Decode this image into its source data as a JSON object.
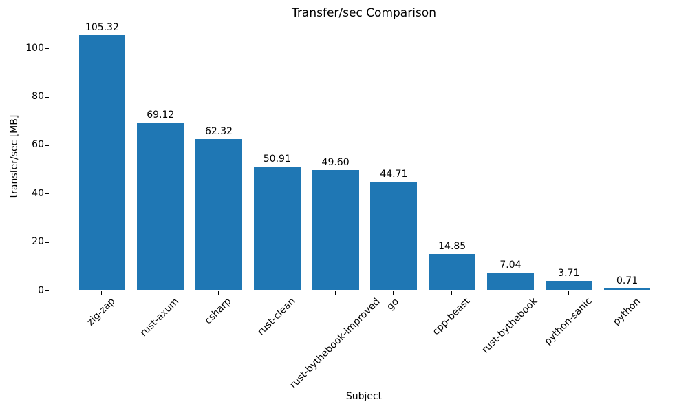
{
  "chart_data": {
    "type": "bar",
    "title": "Transfer/sec Comparison",
    "xlabel": "Subject",
    "ylabel": "transfer/sec [MB]",
    "categories": [
      "zig-zap",
      "rust-axum",
      "csharp",
      "rust-clean",
      "rust-bythebook-improved",
      "go",
      "cpp-beast",
      "rust-bythebook",
      "python-sanic",
      "python"
    ],
    "values": [
      105.32,
      69.12,
      62.32,
      50.91,
      49.6,
      44.71,
      14.85,
      7.04,
      3.71,
      0.71
    ],
    "value_labels": [
      "105.32",
      "69.12",
      "62.32",
      "50.91",
      "49.60",
      "44.71",
      "14.85",
      "7.04",
      "3.71",
      "0.71"
    ],
    "yticks": [
      0,
      20,
      40,
      60,
      80,
      100
    ],
    "ylim": [
      0,
      110.59
    ],
    "xlim": [
      -0.89,
      9.89
    ],
    "bar_width_units": 0.8,
    "bar_color": "#1f77b4",
    "grid": false,
    "legend_position": "none"
  }
}
